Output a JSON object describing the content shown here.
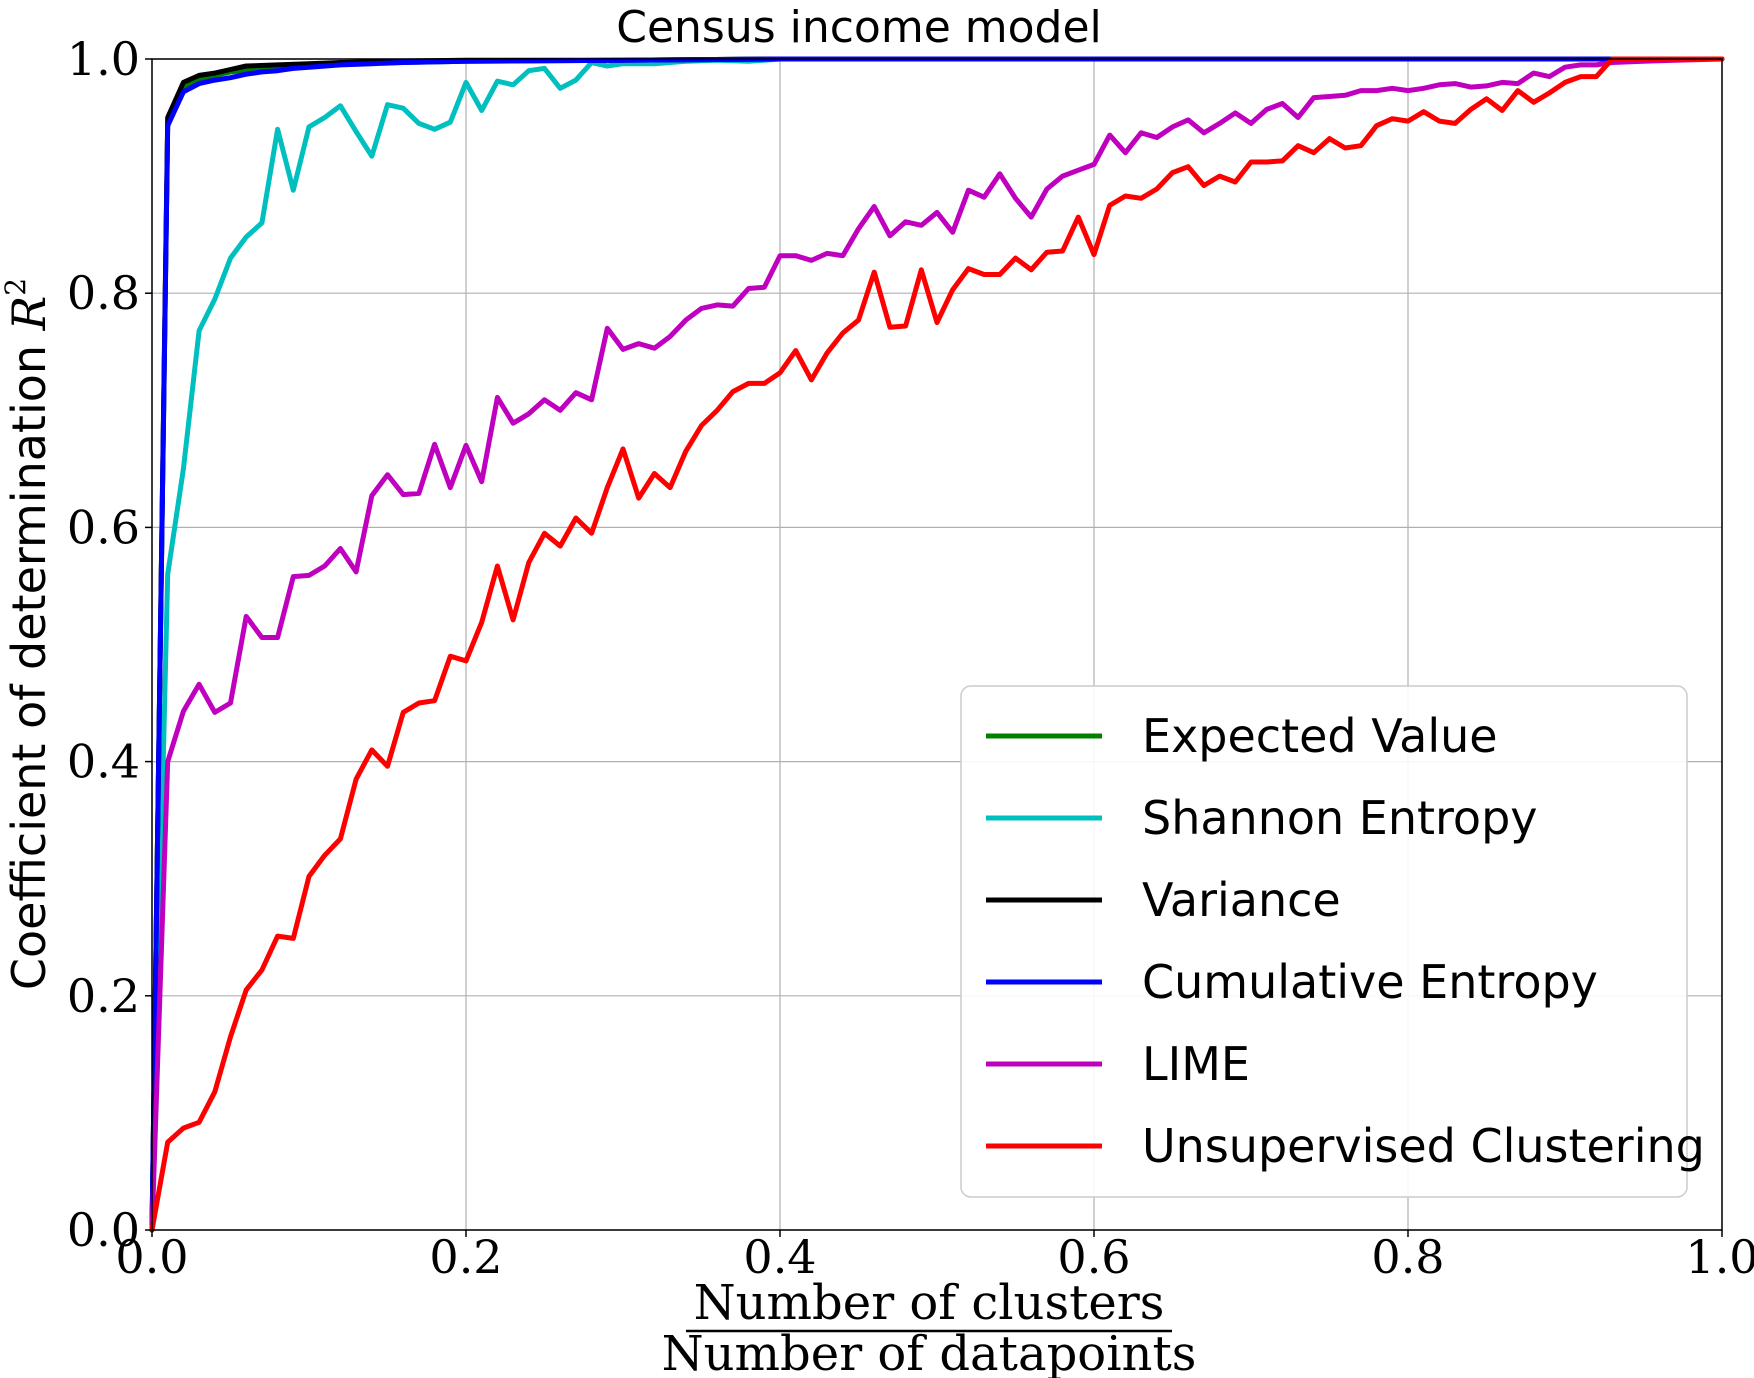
{
  "chart_data": {
    "type": "line",
    "title": "Census income model",
    "xlabel_numerator": "Number of clusters",
    "xlabel_denominator": "Number of datapoints",
    "ylabel_text": "Coefficient of determination",
    "ylabel_math": "R",
    "ylabel_sup": "2",
    "xlim": [
      0,
      1
    ],
    "ylim": [
      0,
      1
    ],
    "xticks": [
      "0.0",
      "0.2",
      "0.4",
      "0.6",
      "0.8",
      "1.0"
    ],
    "yticks": [
      "0.0",
      "0.2",
      "0.4",
      "0.6",
      "0.8",
      "1.0"
    ],
    "grid": true,
    "legend_position": "lower-right",
    "series": [
      {
        "name": "Expected Value",
        "color": "#008000",
        "x": [
          0,
          0.01,
          0.02,
          0.03,
          0.05,
          0.08,
          0.12,
          0.2,
          0.3,
          0.4,
          1.0
        ],
        "y": [
          0,
          0.945,
          0.975,
          0.983,
          0.989,
          0.993,
          0.996,
          0.998,
          0.999,
          1.0,
          1.0
        ]
      },
      {
        "name": "Shannon Entropy",
        "color": "#00bfbf",
        "x": [
          0,
          0.01,
          0.02,
          0.03,
          0.04,
          0.05,
          0.06,
          0.07,
          0.08,
          0.09,
          0.1,
          0.11,
          0.12,
          0.13,
          0.14,
          0.15,
          0.16,
          0.17,
          0.18,
          0.19,
          0.2,
          0.21,
          0.22,
          0.23,
          0.24,
          0.25,
          0.26,
          0.27,
          0.28,
          0.29,
          0.3,
          0.32,
          0.34,
          0.36,
          0.38,
          0.4,
          1.0
        ],
        "y": [
          0,
          0.56,
          0.65,
          0.768,
          0.795,
          0.83,
          0.848,
          0.86,
          0.94,
          0.888,
          0.942,
          0.95,
          0.96,
          0.938,
          0.917,
          0.961,
          0.958,
          0.945,
          0.94,
          0.946,
          0.98,
          0.956,
          0.981,
          0.978,
          0.99,
          0.992,
          0.975,
          0.982,
          0.997,
          0.994,
          0.996,
          0.996,
          0.998,
          0.999,
          0.998,
          1.0,
          1.0
        ]
      },
      {
        "name": "Variance",
        "color": "#000000",
        "x": [
          0,
          0.01,
          0.02,
          0.03,
          0.04,
          0.05,
          0.06,
          0.08,
          0.1,
          0.12,
          0.15,
          0.2,
          0.3,
          0.4,
          1.0
        ],
        "y": [
          0,
          0.95,
          0.98,
          0.986,
          0.988,
          0.991,
          0.994,
          0.995,
          0.996,
          0.997,
          0.998,
          0.999,
          0.999,
          1.0,
          1.0
        ]
      },
      {
        "name": "Cumulative Entropy",
        "color": "#0000ff",
        "x": [
          0,
          0.01,
          0.02,
          0.03,
          0.04,
          0.05,
          0.06,
          0.07,
          0.08,
          0.09,
          0.1,
          0.12,
          0.14,
          0.16,
          0.2,
          0.3,
          0.4,
          1.0
        ],
        "y": [
          0,
          0.943,
          0.972,
          0.979,
          0.982,
          0.984,
          0.987,
          0.989,
          0.99,
          0.992,
          0.993,
          0.995,
          0.996,
          0.997,
          0.998,
          0.999,
          1.0,
          1.0
        ]
      },
      {
        "name": "LIME",
        "color": "#bf00bf",
        "x": [
          0,
          0.01,
          0.02,
          0.03,
          0.04,
          0.05,
          0.06,
          0.07,
          0.08,
          0.09,
          0.1,
          0.11,
          0.12,
          0.13,
          0.14,
          0.15,
          0.16,
          0.17,
          0.18,
          0.19,
          0.2,
          0.21,
          0.22,
          0.23,
          0.24,
          0.25,
          0.26,
          0.27,
          0.28,
          0.29,
          0.3,
          0.31,
          0.32,
          0.33,
          0.34,
          0.35,
          0.36,
          0.37,
          0.38,
          0.39,
          0.4,
          0.41,
          0.42,
          0.43,
          0.44,
          0.45,
          0.46,
          0.47,
          0.48,
          0.49,
          0.5,
          0.51,
          0.52,
          0.53,
          0.54,
          0.55,
          0.56,
          0.57,
          0.58,
          0.59,
          0.6,
          0.61,
          0.62,
          0.63,
          0.64,
          0.65,
          0.66,
          0.67,
          0.68,
          0.69,
          0.7,
          0.71,
          0.72,
          0.73,
          0.74,
          0.75,
          0.76,
          0.77,
          0.78,
          0.79,
          0.8,
          0.81,
          0.82,
          0.83,
          0.84,
          0.85,
          0.86,
          0.87,
          0.88,
          0.89,
          0.9,
          0.91,
          0.92,
          0.93,
          0.95,
          0.97,
          1.0
        ],
        "y": [
          0,
          0.4,
          0.443,
          0.466,
          0.442,
          0.45,
          0.524,
          0.506,
          0.506,
          0.558,
          0.559,
          0.567,
          0.582,
          0.562,
          0.627,
          0.645,
          0.628,
          0.629,
          0.671,
          0.634,
          0.67,
          0.639,
          0.711,
          0.689,
          0.697,
          0.709,
          0.7,
          0.715,
          0.709,
          0.77,
          0.752,
          0.757,
          0.753,
          0.763,
          0.777,
          0.787,
          0.79,
          0.789,
          0.804,
          0.805,
          0.832,
          0.832,
          0.828,
          0.834,
          0.832,
          0.855,
          0.874,
          0.849,
          0.861,
          0.858,
          0.869,
          0.852,
          0.888,
          0.882,
          0.902,
          0.881,
          0.865,
          0.889,
          0.9,
          0.905,
          0.91,
          0.935,
          0.92,
          0.937,
          0.933,
          0.942,
          0.948,
          0.937,
          0.945,
          0.954,
          0.945,
          0.957,
          0.962,
          0.95,
          0.967,
          0.968,
          0.969,
          0.973,
          0.973,
          0.975,
          0.973,
          0.975,
          0.978,
          0.979,
          0.976,
          0.977,
          0.98,
          0.979,
          0.988,
          0.985,
          0.993,
          0.995,
          0.995,
          0.997,
          0.998,
          0.999,
          1.0
        ]
      },
      {
        "name": "Unsupervised Clustering",
        "color": "#ff0000",
        "x": [
          0,
          0.01,
          0.02,
          0.03,
          0.04,
          0.05,
          0.06,
          0.07,
          0.08,
          0.09,
          0.1,
          0.11,
          0.12,
          0.13,
          0.14,
          0.15,
          0.16,
          0.17,
          0.18,
          0.19,
          0.2,
          0.21,
          0.22,
          0.23,
          0.24,
          0.25,
          0.26,
          0.27,
          0.28,
          0.29,
          0.3,
          0.31,
          0.32,
          0.33,
          0.34,
          0.35,
          0.36,
          0.37,
          0.38,
          0.39,
          0.4,
          0.41,
          0.42,
          0.43,
          0.44,
          0.45,
          0.46,
          0.47,
          0.48,
          0.49,
          0.5,
          0.51,
          0.52,
          0.53,
          0.54,
          0.55,
          0.56,
          0.57,
          0.58,
          0.59,
          0.6,
          0.61,
          0.62,
          0.63,
          0.64,
          0.65,
          0.66,
          0.67,
          0.68,
          0.69,
          0.7,
          0.71,
          0.72,
          0.73,
          0.74,
          0.75,
          0.76,
          0.77,
          0.78,
          0.79,
          0.8,
          0.81,
          0.82,
          0.83,
          0.84,
          0.85,
          0.86,
          0.87,
          0.88,
          0.89,
          0.9,
          0.91,
          0.92,
          0.93,
          0.95,
          0.97,
          1.0
        ],
        "y": [
          0,
          0.075,
          0.087,
          0.092,
          0.118,
          0.165,
          0.205,
          0.222,
          0.251,
          0.249,
          0.302,
          0.32,
          0.334,
          0.385,
          0.41,
          0.396,
          0.442,
          0.45,
          0.452,
          0.49,
          0.486,
          0.519,
          0.567,
          0.521,
          0.57,
          0.595,
          0.584,
          0.608,
          0.595,
          0.634,
          0.667,
          0.625,
          0.646,
          0.634,
          0.665,
          0.687,
          0.7,
          0.716,
          0.723,
          0.723,
          0.732,
          0.751,
          0.726,
          0.749,
          0.766,
          0.777,
          0.818,
          0.771,
          0.772,
          0.82,
          0.775,
          0.803,
          0.821,
          0.816,
          0.816,
          0.83,
          0.82,
          0.835,
          0.836,
          0.865,
          0.833,
          0.875,
          0.883,
          0.881,
          0.889,
          0.903,
          0.908,
          0.892,
          0.9,
          0.895,
          0.912,
          0.912,
          0.913,
          0.926,
          0.92,
          0.932,
          0.924,
          0.926,
          0.943,
          0.949,
          0.947,
          0.955,
          0.947,
          0.945,
          0.957,
          0.966,
          0.956,
          0.973,
          0.963,
          0.971,
          0.98,
          0.985,
          0.985,
          1.0,
          1.0,
          1.0,
          1.0
        ]
      }
    ]
  }
}
